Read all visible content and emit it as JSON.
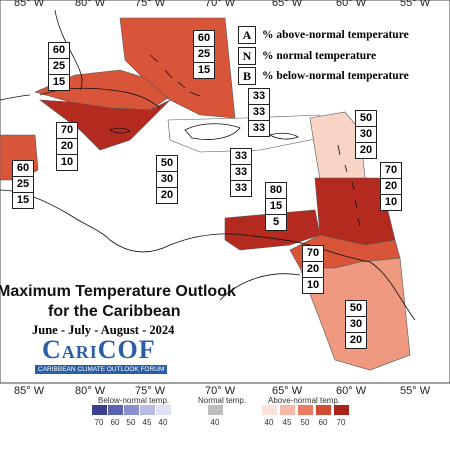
{
  "map": {
    "title_line1": "Maximum Temperature Outlook",
    "title_line2": "for the Caribbean",
    "season": "June - July - August - 2024",
    "longitudes": [
      "85° W",
      "80° W",
      "75° W",
      "70° W",
      "65° W",
      "60° W",
      "55° W"
    ],
    "colors": {
      "above_40": "#f7d4c6",
      "above_50": "#ef9a80",
      "above_60": "#d9553a",
      "above_70": "#b52a1e",
      "outline": "#333333"
    }
  },
  "legend": {
    "above": {
      "key": "A",
      "text": "% above-normal temperature"
    },
    "normal": {
      "key": "N",
      "text": "% normal temperature"
    },
    "below": {
      "key": "B",
      "text": "% below-normal temperature"
    }
  },
  "regions": [
    {
      "id": "bahamas",
      "above": "60",
      "normal": "25",
      "below": "15"
    },
    {
      "id": "cuba-west",
      "above": "60",
      "normal": "25",
      "below": "15"
    },
    {
      "id": "cuba-jamaica",
      "above": "70",
      "normal": "20",
      "below": "10"
    },
    {
      "id": "hispaniola",
      "above": "33",
      "normal": "33",
      "below": "33"
    },
    {
      "id": "hispaniola-south",
      "above": "33",
      "normal": "33",
      "below": "33"
    },
    {
      "id": "jamaica-south",
      "above": "50",
      "normal": "30",
      "below": "20"
    },
    {
      "id": "central-america",
      "above": "60",
      "normal": "25",
      "below": "15"
    },
    {
      "id": "leeward-islands",
      "above": "50",
      "normal": "30",
      "below": "20"
    },
    {
      "id": "windward-islands",
      "above": "70",
      "normal": "20",
      "below": "10"
    },
    {
      "id": "abc-islands",
      "above": "80",
      "normal": "15",
      "below": "5"
    },
    {
      "id": "trinidad-guyana",
      "above": "70",
      "normal": "20",
      "below": "10"
    },
    {
      "id": "guianas",
      "above": "50",
      "normal": "30",
      "below": "20"
    }
  ],
  "brand": {
    "name": "CariCOF",
    "subtitle": "CARIBBEAN CLIMATE OUTLOOK FORUM"
  },
  "colorbar": {
    "below_title": "Below-normal temp.",
    "normal_title": "Normal temp.",
    "above_title": "Above-normal temp.",
    "below_ticks": [
      "70",
      "60",
      "50",
      "45",
      "40"
    ],
    "normal_tick": "40",
    "above_ticks": [
      "40",
      "45",
      "50",
      "60",
      "70"
    ],
    "below_colors": [
      "#3a3f8f",
      "#5a62b3",
      "#8a90cf",
      "#b8bce4",
      "#e0e2f4"
    ],
    "normal_color": "#bdbdbd",
    "above_colors": [
      "#fbe3da",
      "#f5b9a5",
      "#e97c62",
      "#d34a32",
      "#a9231a"
    ]
  }
}
